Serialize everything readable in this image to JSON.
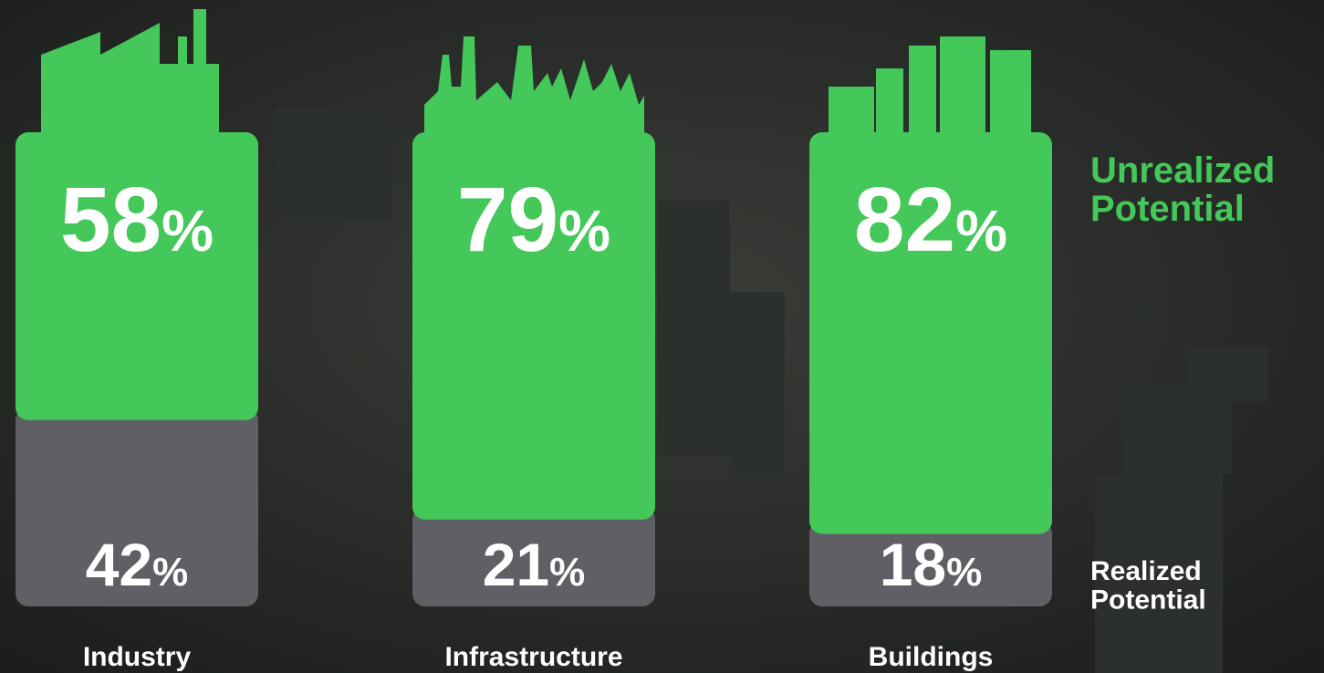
{
  "chart_data": {
    "type": "stacked-bar",
    "categories": [
      "Industry",
      "Infrastructure",
      "Buildings"
    ],
    "series": [
      {
        "name": "Realized Potential",
        "color": "#5f6066",
        "values": [
          42,
          21,
          18
        ],
        "value_labels": [
          "42%",
          "21%",
          "18%"
        ]
      },
      {
        "name": "Unrealized Potential",
        "color": "#43c859",
        "values": [
          58,
          79,
          82
        ],
        "value_labels": [
          "58%",
          "79%",
          "82%"
        ]
      }
    ],
    "ylim": [
      0,
      100
    ]
  }
}
